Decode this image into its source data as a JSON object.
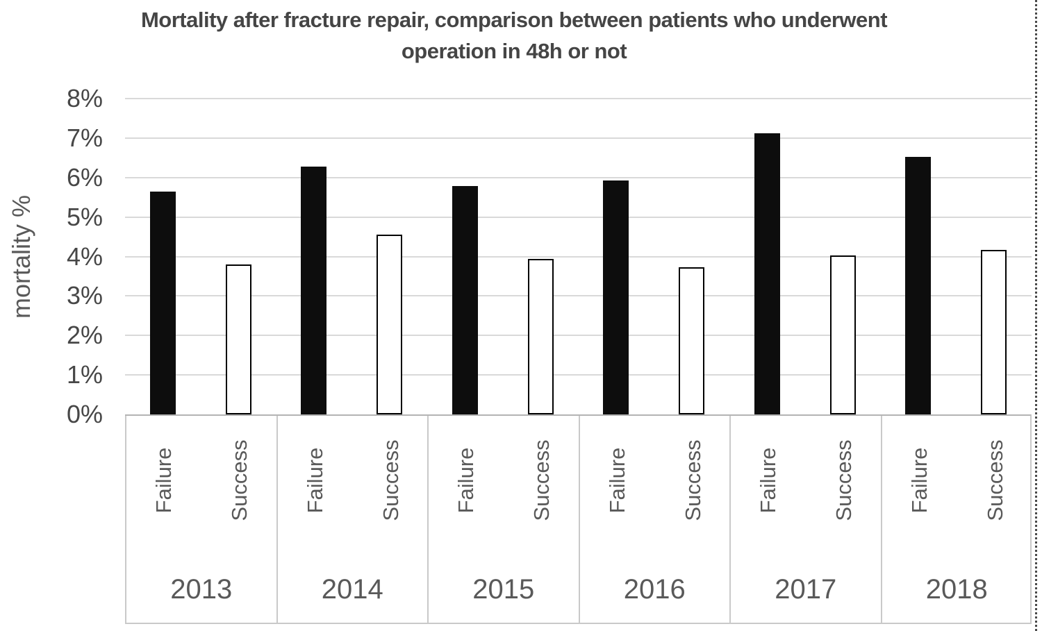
{
  "chart_data": {
    "type": "bar",
    "title": "Mortality after fracture repair, comparison between patients who underwent operation in 48h or not",
    "title_lines": [
      "Mortality after fracture repair, comparison between patients who underwent",
      "operation in 48h or not"
    ],
    "ylabel": "mortality %",
    "ylim": [
      0,
      8
    ],
    "ytick_step": 1,
    "ytick_labels": [
      "0%",
      "1%",
      "2%",
      "3%",
      "4%",
      "5%",
      "6%",
      "7%",
      "8%"
    ],
    "grid": true,
    "legend_position": "none",
    "categories": [
      "2013",
      "2014",
      "2015",
      "2016",
      "2017",
      "2018"
    ],
    "subcategories": [
      "Failure",
      "Success"
    ],
    "series": [
      {
        "name": "Failure",
        "fill": "#0d0d0d",
        "outline": "#0d0d0d",
        "values": [
          5.65,
          6.28,
          5.78,
          5.93,
          7.12,
          6.52
        ]
      },
      {
        "name": "Success",
        "fill": "#ffffff",
        "outline": "#000000",
        "values": [
          3.8,
          4.55,
          3.94,
          3.72,
          4.02,
          4.17
        ]
      }
    ]
  },
  "colors": {
    "title_text": "#454545",
    "axis_tick_text": "#474747",
    "secondary_text": "#595959",
    "gridline": "#d9d9d9",
    "axis_line": "#b3b3b3",
    "box_border": "#c9c9c9",
    "bar_failure": "#0d0d0d",
    "bar_success_fill": "#ffffff",
    "bar_success_outline": "#000000",
    "page_edge_dots": "#4a4a4a"
  }
}
